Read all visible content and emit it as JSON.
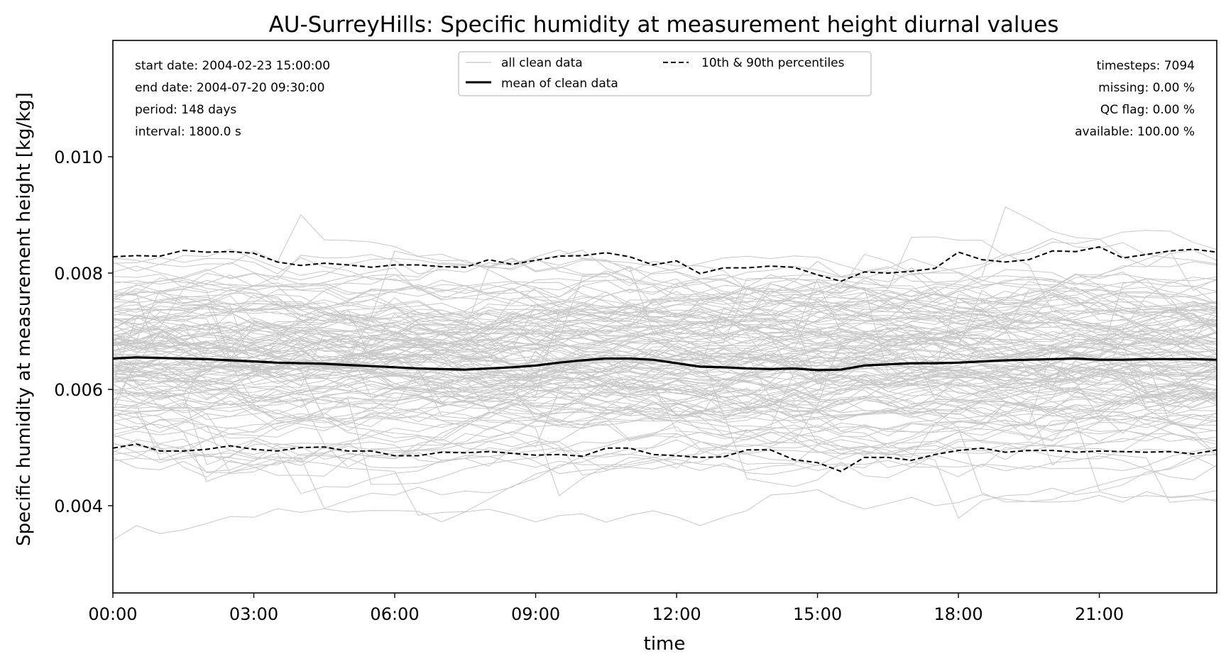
{
  "chart_data": {
    "type": "line",
    "title": "AU-SurreyHills: Specific humidity at measurement height diurnal values",
    "xlabel": "time",
    "ylabel": "Specific humidity at measurement height [kg/kg]",
    "xlim": [
      "00:00",
      "23:30"
    ],
    "ylim": [
      0.0025,
      0.012
    ],
    "x_ticks": [
      "00:00",
      "03:00",
      "06:00",
      "09:00",
      "12:00",
      "15:00",
      "18:00",
      "21:00"
    ],
    "y_ticks": [
      "0.004",
      "0.006",
      "0.008",
      "0.010"
    ],
    "x": [
      "00:00",
      "00:30",
      "01:00",
      "01:30",
      "02:00",
      "02:30",
      "03:00",
      "03:30",
      "04:00",
      "04:30",
      "05:00",
      "05:30",
      "06:00",
      "06:30",
      "07:00",
      "07:30",
      "08:00",
      "08:30",
      "09:00",
      "09:30",
      "10:00",
      "10:30",
      "11:00",
      "11:30",
      "12:00",
      "12:30",
      "13:00",
      "13:30",
      "14:00",
      "14:30",
      "15:00",
      "15:30",
      "16:00",
      "16:30",
      "17:00",
      "17:30",
      "18:00",
      "18:30",
      "19:00",
      "19:30",
      "20:00",
      "20:30",
      "21:00",
      "21:30",
      "22:00",
      "22:30",
      "23:00",
      "23:30"
    ],
    "series": [
      {
        "name": "mean of clean data",
        "color": "#000000",
        "style": "solid",
        "values": [
          0.00653,
          0.00655,
          0.00654,
          0.00653,
          0.00652,
          0.0065,
          0.00648,
          0.00646,
          0.00645,
          0.00644,
          0.00642,
          0.0064,
          0.00638,
          0.00636,
          0.00635,
          0.00634,
          0.00636,
          0.00638,
          0.00641,
          0.00646,
          0.0065,
          0.00653,
          0.00653,
          0.00651,
          0.00645,
          0.00639,
          0.00638,
          0.00636,
          0.00635,
          0.00636,
          0.00633,
          0.00634,
          0.00641,
          0.00643,
          0.00645,
          0.00645,
          0.00646,
          0.00648,
          0.0065,
          0.00651,
          0.00652,
          0.00653,
          0.00651,
          0.00651,
          0.00652,
          0.00652,
          0.00652,
          0.00651
        ]
      },
      {
        "name": "10th & 90th percentiles",
        "color": "#000000",
        "style": "dashed",
        "values": [
          0.00828,
          0.0083,
          0.00829,
          0.00839,
          0.00836,
          0.00837,
          0.00834,
          0.00819,
          0.00813,
          0.00817,
          0.00814,
          0.0081,
          0.00814,
          0.00814,
          0.00811,
          0.0081,
          0.00823,
          0.00815,
          0.00822,
          0.00829,
          0.0083,
          0.00835,
          0.00828,
          0.00814,
          0.00821,
          0.00799,
          0.00809,
          0.00809,
          0.00812,
          0.0081,
          0.00797,
          0.00786,
          0.00802,
          0.008,
          0.00803,
          0.00808,
          0.00836,
          0.00823,
          0.00819,
          0.00823,
          0.00838,
          0.00837,
          0.00845,
          0.00826,
          0.00832,
          0.00838,
          0.00841,
          0.00836
        ]
      },
      {
        "name": "10th percentile",
        "color": "#000000",
        "style": "dashed",
        "values": [
          0.00499,
          0.00506,
          0.00494,
          0.00494,
          0.00497,
          0.00503,
          0.00497,
          0.00494,
          0.005,
          0.00501,
          0.00494,
          0.00494,
          0.00486,
          0.00486,
          0.00492,
          0.00491,
          0.00493,
          0.0049,
          0.00487,
          0.00488,
          0.00485,
          0.00499,
          0.00499,
          0.00488,
          0.00486,
          0.00483,
          0.00484,
          0.00496,
          0.00496,
          0.00479,
          0.00474,
          0.00459,
          0.00483,
          0.00483,
          0.00478,
          0.00488,
          0.00495,
          0.00499,
          0.00492,
          0.00495,
          0.00495,
          0.00492,
          0.00494,
          0.00493,
          0.00492,
          0.00493,
          0.00489,
          0.00496
        ]
      }
    ],
    "background_lines": "all clean data",
    "background_color": "#c8c8c8",
    "legend": {
      "placement": "top-center",
      "entries": [
        "all clean data",
        "mean of clean data",
        "10th & 90th percentiles"
      ]
    },
    "info_left": [
      "start date: 2004-02-23 15:00:00",
      "end date: 2004-07-20 09:30:00",
      "period: 148 days",
      "interval: 1800.0 s"
    ],
    "info_right": [
      "timesteps: 7094",
      "missing: 0.00 %",
      "QC flag: 0.00 %",
      "available: 100.00 %"
    ],
    "grid": false
  }
}
